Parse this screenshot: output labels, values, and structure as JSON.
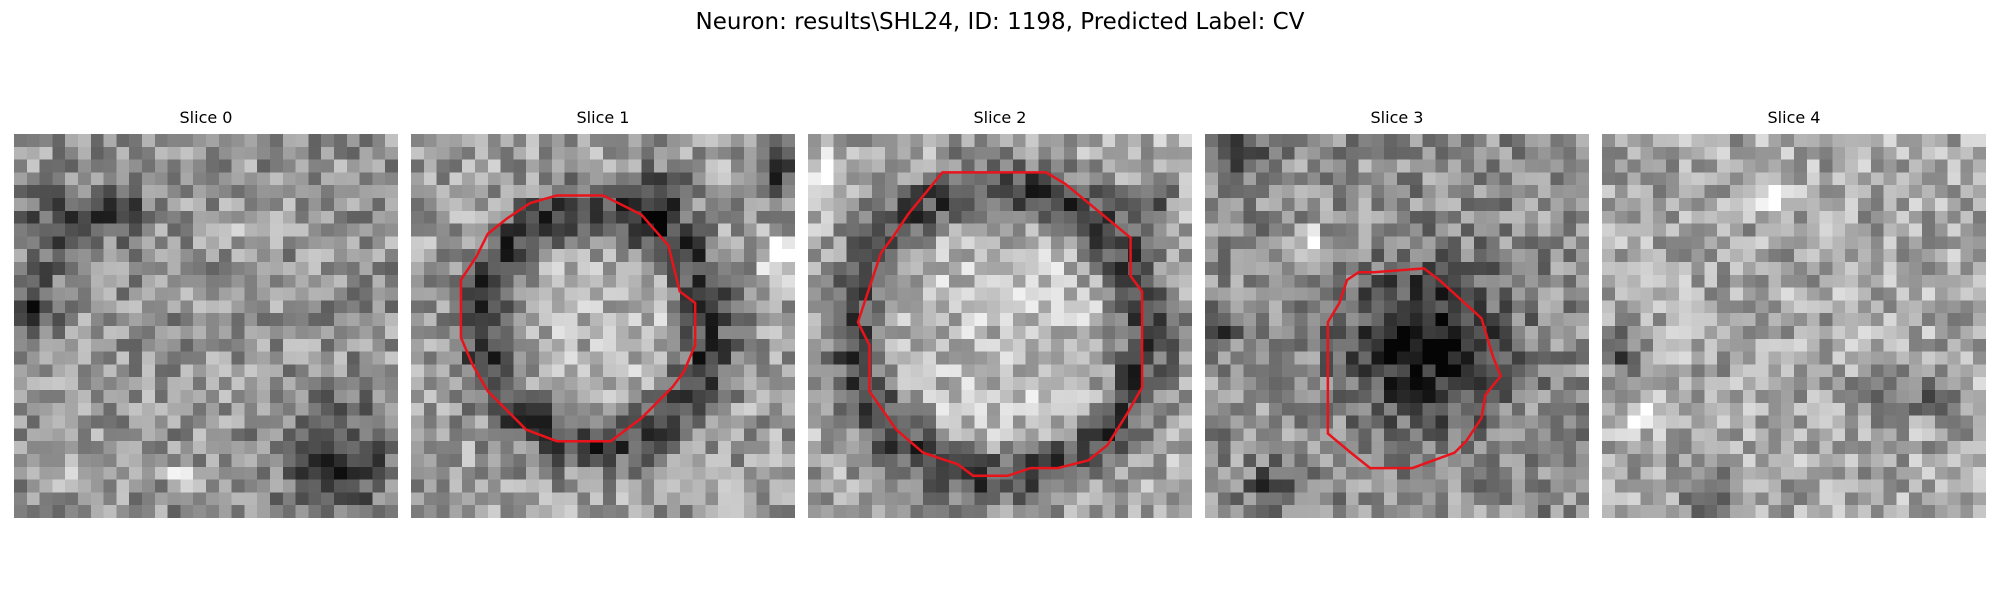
{
  "figure": {
    "title": "Neuron: results\\SHL24, ID: 1198, Predicted Label: CV"
  },
  "contour_color": "#e8141c",
  "panels": [
    {
      "title": "Slice 0",
      "has_contour": false,
      "texture": {
        "mean": 0.58,
        "seed": 11,
        "dark_spots": [
          [
            0.12,
            0.25,
            0.09
          ],
          [
            0.85,
            0.85,
            0.14
          ],
          [
            0.27,
            0.19,
            0.07
          ],
          [
            0.05,
            0.45,
            0.08
          ]
        ],
        "bright_spots": [
          [
            0.6,
            0.25,
            0.03
          ],
          [
            0.15,
            0.88,
            0.03
          ],
          [
            0.43,
            0.89,
            0.03
          ]
        ]
      }
    },
    {
      "title": "Slice 1",
      "has_contour": true,
      "texture": {
        "mean": 0.62,
        "seed": 23,
        "ring": [
          0.48,
          0.5,
          0.3,
          0.07
        ],
        "dark_spots": [
          [
            0.65,
            0.15,
            0.07
          ],
          [
            0.96,
            0.1,
            0.06
          ]
        ],
        "bright_spots": [
          [
            0.96,
            0.32,
            0.05
          ]
        ]
      },
      "contour": [
        [
          0.38,
          0.16
        ],
        [
          0.5,
          0.16
        ],
        [
          0.6,
          0.21
        ],
        [
          0.67,
          0.29
        ],
        [
          0.7,
          0.41
        ],
        [
          0.74,
          0.44
        ],
        [
          0.74,
          0.55
        ],
        [
          0.71,
          0.62
        ],
        [
          0.68,
          0.66
        ],
        [
          0.6,
          0.74
        ],
        [
          0.52,
          0.8
        ],
        [
          0.45,
          0.8
        ],
        [
          0.38,
          0.8
        ],
        [
          0.3,
          0.77
        ],
        [
          0.2,
          0.67
        ],
        [
          0.16,
          0.6
        ],
        [
          0.13,
          0.53
        ],
        [
          0.13,
          0.38
        ],
        [
          0.17,
          0.32
        ],
        [
          0.2,
          0.26
        ],
        [
          0.25,
          0.22
        ],
        [
          0.31,
          0.18
        ]
      ]
    },
    {
      "title": "Slice 2",
      "has_contour": true,
      "texture": {
        "mean": 0.66,
        "seed": 37,
        "ring": [
          0.5,
          0.52,
          0.38,
          0.08
        ],
        "dark_spots": [
          [
            0.89,
            0.17,
            0.06
          ]
        ],
        "bright_spots": [
          [
            0.05,
            0.1,
            0.05
          ]
        ]
      },
      "contour": [
        [
          0.35,
          0.1
        ],
        [
          0.62,
          0.1
        ],
        [
          0.67,
          0.13
        ],
        [
          0.84,
          0.27
        ],
        [
          0.84,
          0.37
        ],
        [
          0.87,
          0.41
        ],
        [
          0.87,
          0.66
        ],
        [
          0.83,
          0.73
        ],
        [
          0.78,
          0.81
        ],
        [
          0.73,
          0.85
        ],
        [
          0.65,
          0.87
        ],
        [
          0.58,
          0.87
        ],
        [
          0.52,
          0.89
        ],
        [
          0.43,
          0.89
        ],
        [
          0.39,
          0.86
        ],
        [
          0.3,
          0.83
        ],
        [
          0.23,
          0.77
        ],
        [
          0.16,
          0.67
        ],
        [
          0.16,
          0.55
        ],
        [
          0.13,
          0.49
        ],
        [
          0.15,
          0.43
        ],
        [
          0.19,
          0.31
        ],
        [
          0.22,
          0.27
        ],
        [
          0.26,
          0.21
        ]
      ]
    },
    {
      "title": "Slice 3",
      "has_contour": true,
      "texture": {
        "mean": 0.56,
        "seed": 53,
        "blob": [
          0.58,
          0.55,
          0.2,
          0.5
        ],
        "dark_spots": [
          [
            0.1,
            0.05,
            0.05
          ],
          [
            0.18,
            0.92,
            0.06
          ],
          [
            0.03,
            0.5,
            0.05
          ]
        ],
        "bright_spots": [
          [
            0.28,
            0.3,
            0.05
          ]
        ]
      },
      "contour": [
        [
          0.44,
          0.36
        ],
        [
          0.57,
          0.35
        ],
        [
          0.61,
          0.38
        ],
        [
          0.72,
          0.48
        ],
        [
          0.75,
          0.58
        ],
        [
          0.77,
          0.63
        ],
        [
          0.73,
          0.68
        ],
        [
          0.72,
          0.74
        ],
        [
          0.68,
          0.8
        ],
        [
          0.65,
          0.83
        ],
        [
          0.54,
          0.87
        ],
        [
          0.43,
          0.87
        ],
        [
          0.38,
          0.83
        ],
        [
          0.32,
          0.78
        ],
        [
          0.32,
          0.49
        ],
        [
          0.35,
          0.44
        ],
        [
          0.37,
          0.38
        ],
        [
          0.4,
          0.36
        ]
      ]
    },
    {
      "title": "Slice 4",
      "has_contour": false,
      "texture": {
        "mean": 0.66,
        "seed": 71,
        "dark_spots": [
          [
            0.05,
            0.57,
            0.05
          ],
          [
            0.28,
            0.95,
            0.06
          ],
          [
            0.73,
            0.7,
            0.06
          ],
          [
            0.86,
            0.67,
            0.05
          ]
        ],
        "bright_spots": [
          [
            0.1,
            0.73,
            0.03
          ],
          [
            0.45,
            0.17,
            0.03
          ]
        ]
      }
    }
  ]
}
